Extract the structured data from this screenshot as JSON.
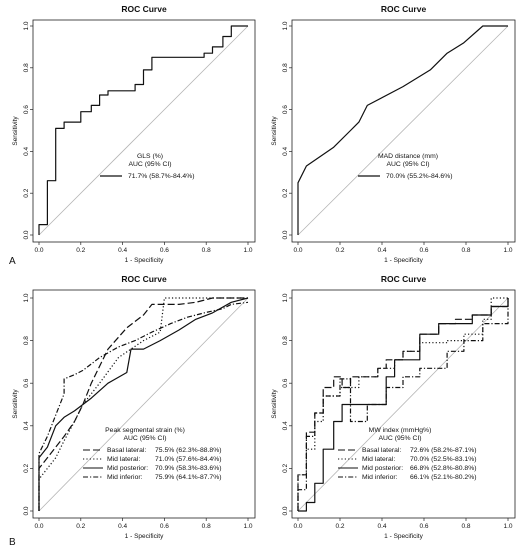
{
  "figure": {
    "panel_labels": [
      "A",
      "B"
    ]
  },
  "chart_data": [
    {
      "type": "line",
      "title": "ROC Curve",
      "xlabel": "1 - Specificity",
      "ylabel": "Sensitivity",
      "xlim": [
        0,
        1
      ],
      "ylim": [
        0,
        1
      ],
      "ticks": [
        "0.0",
        "0.2",
        "0.4",
        "0.6",
        "0.8",
        "1.0"
      ],
      "diagonal_reference": true,
      "legend_title": [
        "GLS (%)",
        "AUC (95% CI)"
      ],
      "series": [
        {
          "name": "71.7% (58.7%-84.4%)",
          "dash": "solid",
          "x": [
            0.0,
            0.0,
            0.04,
            0.04,
            0.08,
            0.08,
            0.12,
            0.12,
            0.2,
            0.2,
            0.25,
            0.25,
            0.29,
            0.29,
            0.33,
            0.33,
            0.46,
            0.46,
            0.5,
            0.5,
            0.54,
            0.54,
            0.79,
            0.79,
            0.83,
            0.83,
            0.88,
            0.88,
            0.92,
            0.92,
            1.0,
            1.0
          ],
          "y": [
            0.0,
            0.05,
            0.05,
            0.26,
            0.26,
            0.51,
            0.51,
            0.54,
            0.54,
            0.59,
            0.59,
            0.62,
            0.62,
            0.67,
            0.67,
            0.69,
            0.69,
            0.72,
            0.72,
            0.79,
            0.79,
            0.85,
            0.85,
            0.87,
            0.87,
            0.9,
            0.9,
            0.95,
            0.95,
            1.0,
            1.0,
            1.0
          ]
        }
      ]
    },
    {
      "type": "line",
      "title": "ROC Curve",
      "xlabel": "1 - Specificity",
      "ylabel": "Sensitivity",
      "xlim": [
        0,
        1
      ],
      "ylim": [
        0,
        1
      ],
      "ticks": [
        "0.0",
        "0.2",
        "0.4",
        "0.6",
        "0.8",
        "1.0"
      ],
      "diagonal_reference": true,
      "legend_title": [
        "MAD distance (mm)",
        "AUC (95% CI)"
      ],
      "series": [
        {
          "name": "70.0% (55.2%-84.6%)",
          "dash": "solid",
          "x": [
            0.0,
            0.0,
            0.04,
            0.17,
            0.25,
            0.29,
            0.33,
            0.5,
            0.63,
            0.71,
            0.79,
            0.88,
            1.0
          ],
          "y": [
            0.0,
            0.25,
            0.33,
            0.42,
            0.5,
            0.54,
            0.62,
            0.71,
            0.79,
            0.87,
            0.92,
            1.0,
            1.0
          ]
        }
      ]
    },
    {
      "type": "line",
      "title": "ROC Curve",
      "xlabel": "1 - Specificity",
      "ylabel": "Sensitivity",
      "xlim": [
        0,
        1
      ],
      "ylim": [
        0,
        1
      ],
      "ticks": [
        "0.0",
        "0.2",
        "0.4",
        "0.6",
        "0.8",
        "1.0"
      ],
      "diagonal_reference": true,
      "legend_title": [
        "Peak segmental strain (%)",
        "AUC (95% CI)"
      ],
      "series": [
        {
          "name": "Basal lateral:",
          "auc": "75.5% (62.3%-88.8%)",
          "dash": "longdash",
          "x": [
            0.0,
            0.0,
            0.04,
            0.08,
            0.12,
            0.17,
            0.21,
            0.25,
            0.33,
            0.42,
            0.5,
            0.54,
            0.58,
            0.67,
            0.75,
            0.83,
            0.92,
            1.0
          ],
          "y": [
            0.0,
            0.2,
            0.25,
            0.3,
            0.35,
            0.42,
            0.5,
            0.6,
            0.76,
            0.86,
            0.92,
            0.97,
            0.97,
            0.97,
            0.98,
            1.0,
            1.0,
            1.0
          ]
        },
        {
          "name": "Mid lateral:",
          "auc": "71.0% (57.6%-84.4%)",
          "dash": "dotted",
          "x": [
            0.0,
            0.0,
            0.04,
            0.08,
            0.12,
            0.17,
            0.21,
            0.29,
            0.38,
            0.5,
            0.58,
            0.6,
            0.63,
            0.67,
            0.75,
            0.83,
            1.0
          ],
          "y": [
            0.0,
            0.15,
            0.2,
            0.25,
            0.33,
            0.42,
            0.5,
            0.6,
            0.72,
            0.8,
            0.84,
            1.0,
            1.0,
            1.0,
            1.0,
            1.0,
            1.0
          ]
        },
        {
          "name": "Mid posterior:",
          "auc": "70.9% (58.3%-83.6%)",
          "dash": "solid",
          "x": [
            0.0,
            0.0,
            0.04,
            0.08,
            0.12,
            0.17,
            0.25,
            0.33,
            0.42,
            0.44,
            0.46,
            0.5,
            0.58,
            0.67,
            0.75,
            0.83,
            0.92,
            1.0
          ],
          "y": [
            0.0,
            0.25,
            0.3,
            0.4,
            0.44,
            0.47,
            0.53,
            0.6,
            0.65,
            0.76,
            0.76,
            0.76,
            0.8,
            0.85,
            0.9,
            0.93,
            0.98,
            1.0
          ]
        },
        {
          "name": "Mid inferior:",
          "auc": "75.9% (64.1%-87.7%)",
          "dash": "dotdash",
          "x": [
            0.0,
            0.0,
            0.04,
            0.08,
            0.12,
            0.12,
            0.17,
            0.21,
            0.29,
            0.38,
            0.46,
            0.54,
            0.63,
            0.71,
            0.79,
            0.88,
            0.92,
            1.0
          ],
          "y": [
            0.0,
            0.27,
            0.35,
            0.45,
            0.55,
            0.62,
            0.64,
            0.66,
            0.72,
            0.77,
            0.8,
            0.84,
            0.88,
            0.91,
            0.93,
            0.95,
            0.97,
            0.98
          ]
        }
      ]
    },
    {
      "type": "line",
      "title": "ROC Curve",
      "xlabel": "1 - Specificity",
      "ylabel": "Sensitivity",
      "xlim": [
        0,
        1
      ],
      "ylim": [
        0,
        1
      ],
      "ticks": [
        "0.0",
        "0.2",
        "0.4",
        "0.6",
        "0.8",
        "1.0"
      ],
      "diagonal_reference": true,
      "legend_title": [
        "MW index (mmHg%)",
        "AUC (95% CI)"
      ],
      "series": [
        {
          "name": "Basal lateral:",
          "auc": "72.6% (58.2%-87.1%)",
          "dash": "longdash",
          "x": [
            0.0,
            0.0,
            0.04,
            0.04,
            0.08,
            0.08,
            0.12,
            0.12,
            0.17,
            0.17,
            0.21,
            0.21,
            0.25,
            0.25,
            0.38,
            0.38,
            0.42,
            0.42,
            0.5,
            0.5,
            0.58,
            0.58,
            0.67,
            0.67,
            0.75,
            0.75,
            0.83,
            0.83,
            0.92,
            0.92,
            1.0,
            1.0
          ],
          "y": [
            0.0,
            0.17,
            0.17,
            0.37,
            0.37,
            0.46,
            0.46,
            0.58,
            0.58,
            0.63,
            0.63,
            0.58,
            0.58,
            0.63,
            0.63,
            0.67,
            0.67,
            0.71,
            0.71,
            0.75,
            0.75,
            0.83,
            0.83,
            0.88,
            0.88,
            0.9,
            0.9,
            0.92,
            0.92,
            0.96,
            0.96,
            1.0
          ]
        },
        {
          "name": "Mid lateral:",
          "auc": "70.0% (52.5%-83.1%)",
          "dash": "dotted",
          "x": [
            0.0,
            0.0,
            0.04,
            0.04,
            0.08,
            0.08,
            0.12,
            0.12,
            0.2,
            0.2,
            0.29,
            0.29,
            0.38,
            0.38,
            0.46,
            0.46,
            0.5,
            0.5,
            0.58,
            0.58,
            0.71,
            0.71,
            0.79,
            0.79,
            0.88,
            0.88,
            0.92,
            0.92,
            1.0,
            1.0
          ],
          "y": [
            0.0,
            0.17,
            0.17,
            0.29,
            0.29,
            0.42,
            0.42,
            0.54,
            0.54,
            0.58,
            0.58,
            0.63,
            0.63,
            0.67,
            0.67,
            0.71,
            0.71,
            0.75,
            0.75,
            0.79,
            0.79,
            0.8,
            0.8,
            0.83,
            0.83,
            0.9,
            0.9,
            1.0,
            1.0,
            1.0
          ]
        },
        {
          "name": "Mid posterior:",
          "auc": "66.8% (52.8%-80.8%)",
          "dash": "solid",
          "x": [
            0.0,
            0.0,
            0.04,
            0.04,
            0.08,
            0.08,
            0.12,
            0.12,
            0.17,
            0.17,
            0.21,
            0.21,
            0.33,
            0.33,
            0.42,
            0.42,
            0.46,
            0.46,
            0.58,
            0.58,
            0.67,
            0.67,
            0.75,
            0.75,
            0.83,
            0.83,
            0.92,
            0.92,
            1.0,
            1.0
          ],
          "y": [
            0.0,
            0.0,
            0.0,
            0.04,
            0.04,
            0.13,
            0.13,
            0.29,
            0.29,
            0.42,
            0.42,
            0.5,
            0.5,
            0.5,
            0.5,
            0.63,
            0.63,
            0.71,
            0.71,
            0.83,
            0.83,
            0.88,
            0.88,
            0.88,
            0.88,
            0.92,
            0.92,
            0.96,
            0.96,
            1.0
          ]
        },
        {
          "name": "Mid inferior:",
          "auc": "66.1% (52.1%-80.2%)",
          "dash": "dotdash",
          "x": [
            0.0,
            0.0,
            0.04,
            0.04,
            0.08,
            0.08,
            0.12,
            0.12,
            0.2,
            0.2,
            0.25,
            0.25,
            0.33,
            0.33,
            0.42,
            0.42,
            0.5,
            0.5,
            0.58,
            0.58,
            0.71,
            0.71,
            0.79,
            0.79,
            0.88,
            0.88,
            1.0,
            1.0
          ],
          "y": [
            0.0,
            0.1,
            0.1,
            0.35,
            0.35,
            0.46,
            0.46,
            0.54,
            0.54,
            0.62,
            0.62,
            0.42,
            0.42,
            0.5,
            0.5,
            0.58,
            0.58,
            0.63,
            0.63,
            0.67,
            0.67,
            0.75,
            0.75,
            0.8,
            0.8,
            0.88,
            0.88,
            1.0
          ]
        }
      ]
    }
  ]
}
